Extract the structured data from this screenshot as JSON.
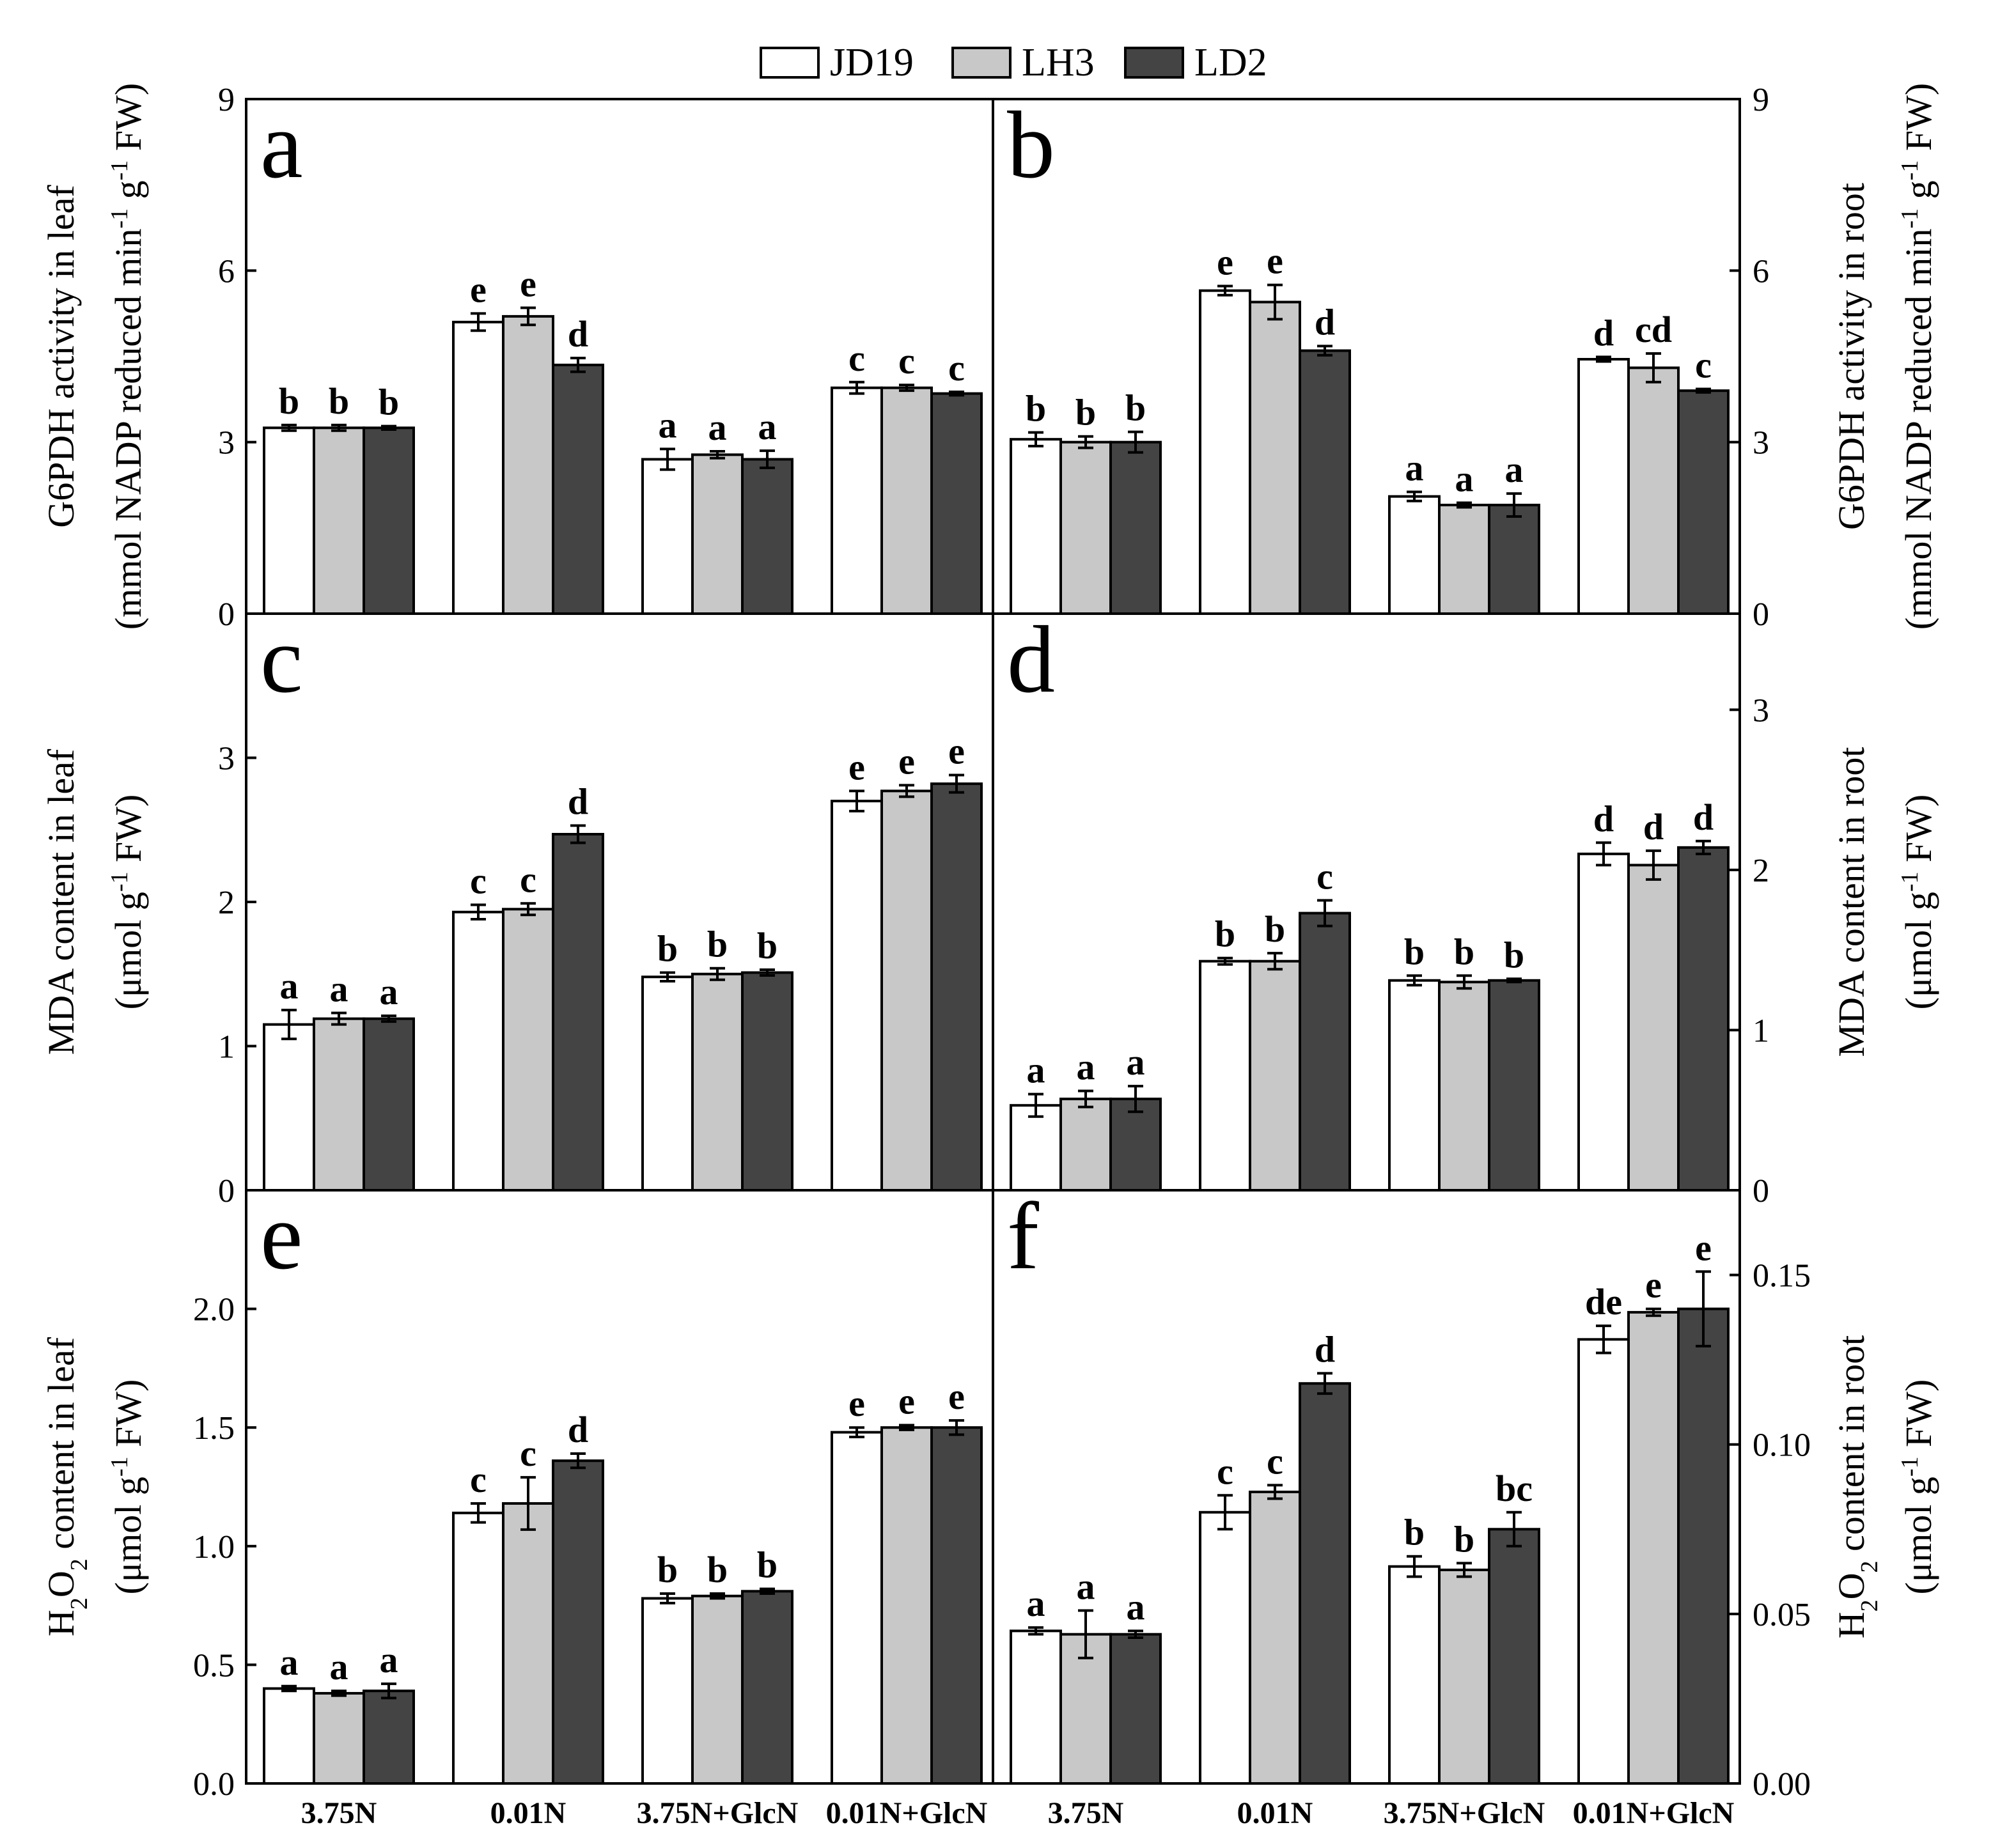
{
  "legend": [
    {
      "name": "JD19",
      "color": "#ffffff"
    },
    {
      "name": "LH3",
      "color": "#c8c8c8"
    },
    {
      "name": "LD2",
      "color": "#444444"
    }
  ],
  "chart_data": [
    {
      "panel": "a",
      "type": "bar",
      "categories": [
        "3.75N",
        "0.01N",
        "3.75N+GlcN",
        "0.01N+GlcN"
      ],
      "ylim": [
        0,
        9
      ],
      "yticks": [
        0,
        3,
        6,
        9
      ],
      "axis_side": "left",
      "ylabel_lines": [
        {
          "text": "G6PDH activity in leaf"
        },
        {
          "parts": [
            {
              "t": "(mmol NADP reduced min"
            },
            {
              "t": "-1",
              "sup": true
            },
            {
              "t": " g"
            },
            {
              "t": "-1",
              "sup": true
            },
            {
              "t": " FW)"
            }
          ]
        }
      ],
      "series": [
        {
          "name": "JD19",
          "values": [
            3.25,
            5.1,
            2.7,
            3.95
          ],
          "errors": [
            0.05,
            0.15,
            0.18,
            0.1
          ],
          "letters": [
            "b",
            "e",
            "a",
            "c"
          ]
        },
        {
          "name": "LH3",
          "values": [
            3.25,
            5.2,
            2.78,
            3.95
          ],
          "errors": [
            0.05,
            0.15,
            0.06,
            0.05
          ],
          "letters": [
            "b",
            "e",
            "a",
            "c"
          ]
        },
        {
          "name": "LD2",
          "values": [
            3.25,
            4.35,
            2.7,
            3.85
          ],
          "errors": [
            0.03,
            0.12,
            0.15,
            0.03
          ],
          "letters": [
            "b",
            "d",
            "a",
            "c"
          ]
        }
      ]
    },
    {
      "panel": "b",
      "type": "bar",
      "categories": [
        "3.75N",
        "0.01N",
        "3.75N+GlcN",
        "0.01N+GlcN"
      ],
      "ylim": [
        0,
        9
      ],
      "yticks": [
        0,
        3,
        6,
        9
      ],
      "axis_side": "right",
      "ylabel_lines": [
        {
          "text": "G6PDH activity in root"
        },
        {
          "parts": [
            {
              "t": "(mmol NADP reduced min"
            },
            {
              "t": "-1",
              "sup": true
            },
            {
              "t": " g"
            },
            {
              "t": "-1",
              "sup": true
            },
            {
              "t": " FW)"
            }
          ]
        }
      ],
      "series": [
        {
          "name": "JD19",
          "values": [
            3.05,
            5.65,
            2.05,
            4.45
          ],
          "errors": [
            0.12,
            0.08,
            0.08,
            0.04
          ],
          "letters": [
            "b",
            "e",
            "a",
            "d"
          ]
        },
        {
          "name": "LH3",
          "values": [
            3.0,
            5.45,
            1.9,
            4.3
          ],
          "errors": [
            0.1,
            0.3,
            0.04,
            0.25
          ],
          "letters": [
            "b",
            "e",
            "a",
            "cd"
          ]
        },
        {
          "name": "LD2",
          "values": [
            3.0,
            4.6,
            1.9,
            3.9
          ],
          "errors": [
            0.18,
            0.08,
            0.2,
            0.03
          ],
          "letters": [
            "b",
            "d",
            "a",
            "c"
          ]
        }
      ]
    },
    {
      "panel": "c",
      "type": "bar",
      "categories": [
        "3.75N",
        "0.01N",
        "3.75N+GlcN",
        "0.01N+GlcN"
      ],
      "ylim": [
        0,
        4
      ],
      "yticks": [
        0,
        1,
        2,
        3
      ],
      "axis_side": "left",
      "ylabel_lines": [
        {
          "text": "MDA content in leaf"
        },
        {
          "parts": [
            {
              "t": "(μmol g"
            },
            {
              "t": "-1",
              "sup": true
            },
            {
              "t": " FW)"
            }
          ]
        }
      ],
      "series": [
        {
          "name": "JD19",
          "values": [
            1.15,
            1.93,
            1.48,
            2.7
          ],
          "errors": [
            0.1,
            0.05,
            0.03,
            0.07
          ],
          "letters": [
            "a",
            "c",
            "b",
            "e"
          ]
        },
        {
          "name": "LH3",
          "values": [
            1.19,
            1.95,
            1.5,
            2.77
          ],
          "errors": [
            0.04,
            0.04,
            0.04,
            0.04
          ],
          "letters": [
            "a",
            "c",
            "b",
            "e"
          ]
        },
        {
          "name": "LD2",
          "values": [
            1.19,
            2.47,
            1.51,
            2.82
          ],
          "errors": [
            0.02,
            0.06,
            0.02,
            0.06
          ],
          "letters": [
            "a",
            "d",
            "b",
            "e"
          ]
        }
      ]
    },
    {
      "panel": "d",
      "type": "bar",
      "categories": [
        "3.75N",
        "0.01N",
        "3.75N+GlcN",
        "0.01N+GlcN"
      ],
      "ylim": [
        0,
        3.6
      ],
      "yticks": [
        0,
        1,
        2,
        3
      ],
      "axis_side": "right",
      "ylabel_lines": [
        {
          "text": "MDA content in root"
        },
        {
          "parts": [
            {
              "t": "(μmol g"
            },
            {
              "t": "-1",
              "sup": true
            },
            {
              "t": " FW)"
            }
          ]
        }
      ],
      "series": [
        {
          "name": "JD19",
          "values": [
            0.53,
            1.43,
            1.31,
            2.1
          ],
          "errors": [
            0.07,
            0.02,
            0.03,
            0.07
          ],
          "letters": [
            "a",
            "b",
            "b",
            "d"
          ]
        },
        {
          "name": "LH3",
          "values": [
            0.57,
            1.43,
            1.3,
            2.03
          ],
          "errors": [
            0.05,
            0.05,
            0.04,
            0.09
          ],
          "letters": [
            "a",
            "b",
            "b",
            "d"
          ]
        },
        {
          "name": "LD2",
          "values": [
            0.57,
            1.73,
            1.31,
            2.14
          ],
          "errors": [
            0.08,
            0.08,
            0.01,
            0.04
          ],
          "letters": [
            "a",
            "c",
            "b",
            "d"
          ]
        }
      ]
    },
    {
      "panel": "e",
      "type": "bar",
      "categories": [
        "3.75N",
        "0.01N",
        "3.75N+GlcN",
        "0.01N+GlcN"
      ],
      "ylim": [
        0,
        2.5
      ],
      "yticks": [
        0.0,
        0.5,
        1.0,
        1.5,
        2.0
      ],
      "tick_decimals": 1,
      "axis_side": "left",
      "ylabel_lines": [
        {
          "parts": [
            {
              "t": "H"
            },
            {
              "t": "2",
              "sub": true
            },
            {
              "t": "O"
            },
            {
              "t": "2",
              "sub": true
            },
            {
              "t": " content in leaf"
            }
          ]
        },
        {
          "parts": [
            {
              "t": "(μmol g"
            },
            {
              "t": "-1",
              "sup": true
            },
            {
              "t": " FW)"
            }
          ]
        }
      ],
      "series": [
        {
          "name": "JD19",
          "values": [
            0.4,
            1.14,
            0.78,
            1.48
          ],
          "errors": [
            0.01,
            0.04,
            0.02,
            0.02
          ],
          "letters": [
            "a",
            "c",
            "b",
            "e"
          ]
        },
        {
          "name": "LH3",
          "values": [
            0.38,
            1.18,
            0.79,
            1.5
          ],
          "errors": [
            0.01,
            0.11,
            0.01,
            0.01
          ],
          "letters": [
            "a",
            "c",
            "b",
            "e"
          ]
        },
        {
          "name": "LD2",
          "values": [
            0.39,
            1.36,
            0.81,
            1.5
          ],
          "errors": [
            0.03,
            0.03,
            0.01,
            0.03
          ],
          "letters": [
            "a",
            "d",
            "b",
            "e"
          ]
        }
      ]
    },
    {
      "panel": "f",
      "type": "bar",
      "categories": [
        "3.75N",
        "0.01N",
        "3.75N+GlcN",
        "0.01N+GlcN"
      ],
      "ylim": [
        0,
        0.175
      ],
      "yticks": [
        0.0,
        0.05,
        0.1,
        0.15
      ],
      "tick_decimals": 2,
      "axis_side": "right",
      "ylabel_lines": [
        {
          "parts": [
            {
              "t": "H"
            },
            {
              "t": "2",
              "sub": true
            },
            {
              "t": "O"
            },
            {
              "t": "2",
              "sub": true
            },
            {
              "t": " content in root"
            }
          ]
        },
        {
          "parts": [
            {
              "t": "(μmol g"
            },
            {
              "t": "-1",
              "sup": true
            },
            {
              "t": " FW)"
            }
          ]
        }
      ],
      "series": [
        {
          "name": "JD19",
          "values": [
            0.045,
            0.08,
            0.064,
            0.131
          ],
          "errors": [
            0.001,
            0.005,
            0.003,
            0.004
          ],
          "letters": [
            "a",
            "c",
            "b",
            "de"
          ]
        },
        {
          "name": "LH3",
          "values": [
            0.044,
            0.086,
            0.063,
            0.139
          ],
          "errors": [
            0.007,
            0.002,
            0.002,
            0.001
          ],
          "letters": [
            "a",
            "c",
            "b",
            "e"
          ]
        },
        {
          "name": "LD2",
          "values": [
            0.044,
            0.118,
            0.075,
            0.14
          ],
          "errors": [
            0.001,
            0.003,
            0.005,
            0.011
          ],
          "letters": [
            "a",
            "d",
            "bc",
            "e"
          ]
        }
      ]
    }
  ]
}
